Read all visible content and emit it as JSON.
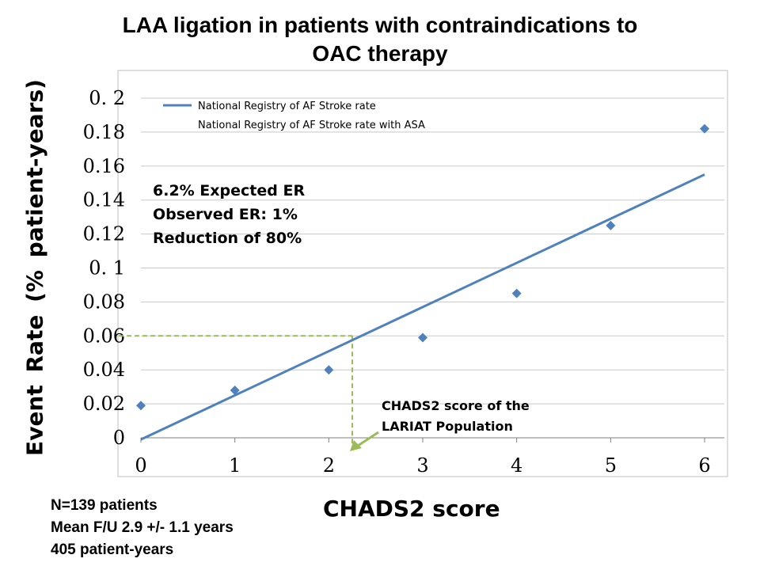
{
  "title_line1": "LAA ligation in patients with contraindications to",
  "title_line2": "OAC therapy",
  "footnotes": [
    "N=139 patients",
    "Mean F/U 2.9 +/- 1.1 years",
    "405 patient-years"
  ],
  "chart_data": {
    "type": "scatter",
    "xlabel": "CHADS2 score",
    "ylabel": "Event  Rate  (% patient-years)",
    "xlim": [
      0,
      6
    ],
    "ylim": [
      0,
      0.2
    ],
    "x_ticks": [
      "0",
      "1",
      "2",
      "3",
      "4",
      "5",
      "6"
    ],
    "y_ticks": [
      "0",
      "0.02",
      "0.04",
      "0.06",
      "0.08",
      "0. 1",
      "0.12",
      "0.14",
      "0.16",
      "0.18",
      "0. 2"
    ],
    "grid": "horizontal",
    "legend_position": "top-left",
    "series": [
      {
        "name": "National Registry of AF Stroke rate",
        "type": "line",
        "color": "#4f81bd",
        "x": [
          0,
          6
        ],
        "y": [
          -0.001,
          0.155
        ]
      },
      {
        "name": "National Registry of AF Stroke rate with ASA",
        "type": "scatter",
        "color": "#4f81bd",
        "marker": "diamond",
        "x": [
          0,
          1,
          2,
          3,
          4,
          5,
          6
        ],
        "y": [
          0.019,
          0.028,
          0.04,
          0.059,
          0.085,
          0.125,
          0.182
        ]
      }
    ],
    "annotations": {
      "box_lines": [
        "6.2% Expected ER",
        "Observed ER:  1%",
        "Reduction of 80%"
      ],
      "callout_lines": [
        "CHADS2 score of  the",
        "LARIAT Population"
      ],
      "reference_point": {
        "x": 2.25,
        "y": 0.06
      },
      "reference_color": "#9bbb59"
    }
  }
}
